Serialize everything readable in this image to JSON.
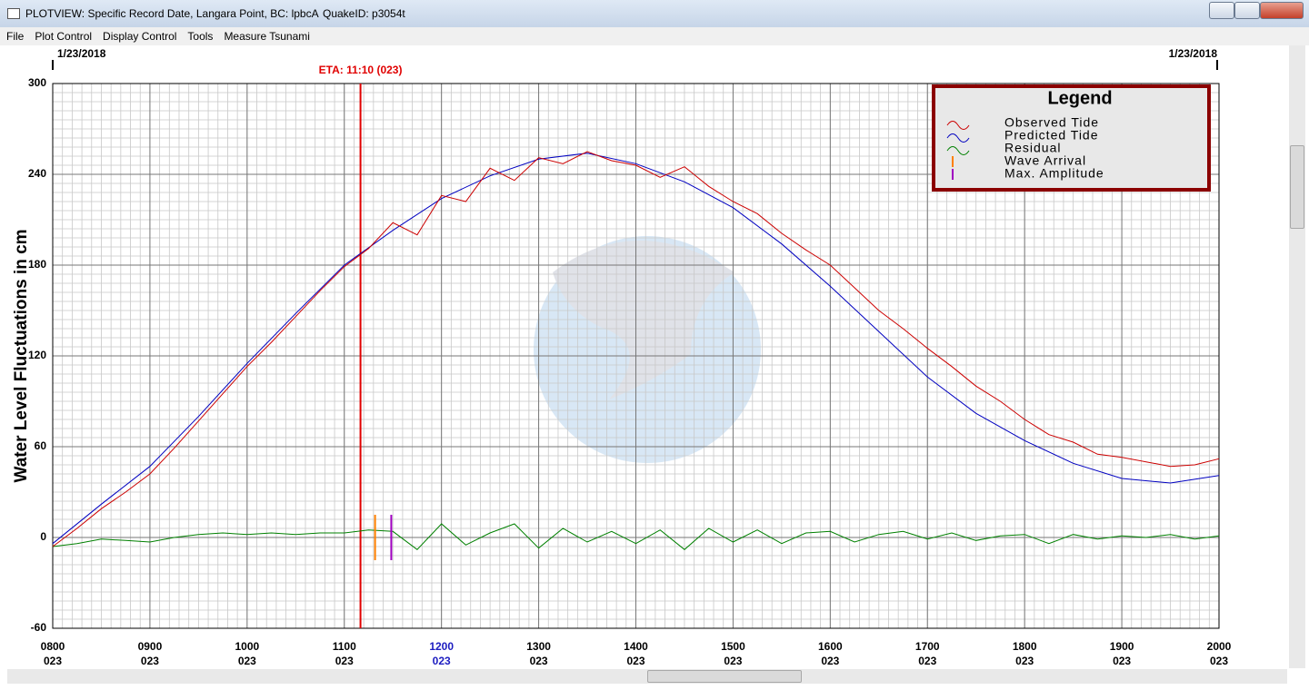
{
  "window": {
    "title": "PLOTVIEW: Specific Record Date, Langara Point, BC: lpbcA",
    "quake_id": "QuakeID: p3054t",
    "menu": [
      "File",
      "Plot Control",
      "Display Control",
      "Tools",
      "Measure Tsunami"
    ]
  },
  "chart_data": {
    "type": "line",
    "date_start": "1/23/2018",
    "date_end": "1/23/2018",
    "ylabel": "Water Level Fluctuations in cm",
    "xlim": [
      480,
      1200
    ],
    "ylim": [
      -60,
      300
    ],
    "yticks": [
      -60,
      0,
      60,
      120,
      180,
      240,
      300
    ],
    "xticks": [
      {
        "value": 480,
        "label": "0800"
      },
      {
        "value": 540,
        "label": "0900"
      },
      {
        "value": 600,
        "label": "1000"
      },
      {
        "value": 660,
        "label": "1100"
      },
      {
        "value": 720,
        "label": "1200",
        "color": "#1c1cc0"
      },
      {
        "value": 780,
        "label": "1300"
      },
      {
        "value": 840,
        "label": "1400"
      },
      {
        "value": 900,
        "label": "1500"
      },
      {
        "value": 960,
        "label": "1600"
      },
      {
        "value": 1020,
        "label": "1700"
      },
      {
        "value": 1080,
        "label": "1800"
      },
      {
        "value": 1140,
        "label": "1900"
      },
      {
        "value": 1200,
        "label": "2000"
      }
    ],
    "xtick_sublabels": [
      "023",
      "023",
      "023",
      "023",
      "023",
      "023",
      "023",
      "023",
      "023",
      "023",
      "023",
      "023",
      "023"
    ],
    "grid": true,
    "minor_xstep": 6,
    "minor_ystep": 6,
    "legend": "top-right",
    "legend_title": "Legend",
    "series": [
      {
        "name": "Observed Tide",
        "color": "#cc0000",
        "x": [
          480,
          495,
          510,
          525,
          540,
          555,
          570,
          585,
          600,
          615,
          630,
          645,
          660,
          675,
          690,
          705,
          720,
          735,
          750,
          765,
          780,
          795,
          810,
          825,
          840,
          855,
          870,
          885,
          900,
          915,
          930,
          945,
          960,
          975,
          990,
          1005,
          1020,
          1035,
          1050,
          1065,
          1080,
          1095,
          1110,
          1125,
          1140,
          1155,
          1170,
          1185,
          1200
        ],
        "values": [
          -6,
          6,
          19,
          30,
          42,
          59,
          77,
          95,
          113,
          129,
          146,
          163,
          179,
          191,
          208,
          200,
          226,
          222,
          244,
          236,
          251,
          247,
          255,
          249,
          246,
          238,
          245,
          232,
          222,
          214,
          201,
          190,
          180,
          165,
          150,
          138,
          125,
          113,
          100,
          90,
          78,
          68,
          63,
          55,
          53,
          50,
          47,
          48,
          52
        ]
      },
      {
        "name": "Predicted Tide",
        "color": "#0000c0",
        "x": [
          480,
          510,
          540,
          570,
          600,
          630,
          660,
          690,
          720,
          750,
          780,
          810,
          840,
          870,
          900,
          930,
          960,
          990,
          1020,
          1050,
          1080,
          1110,
          1140,
          1170,
          1200
        ],
        "values": [
          -4,
          22,
          47,
          80,
          115,
          148,
          180,
          203,
          224,
          239,
          250,
          254,
          247,
          235,
          218,
          194,
          166,
          136,
          106,
          82,
          64,
          49,
          39,
          36,
          41
        ]
      },
      {
        "name": "Residual",
        "color": "#008000",
        "x": [
          480,
          495,
          510,
          525,
          540,
          555,
          570,
          585,
          600,
          615,
          630,
          645,
          660,
          675,
          690,
          705,
          720,
          735,
          750,
          765,
          780,
          795,
          810,
          825,
          840,
          855,
          870,
          885,
          900,
          915,
          930,
          945,
          960,
          975,
          990,
          1005,
          1020,
          1035,
          1050,
          1065,
          1080,
          1095,
          1110,
          1125,
          1140,
          1155,
          1170,
          1185,
          1200
        ],
        "values": [
          -6,
          -4,
          -1,
          -2,
          -3,
          0,
          2,
          3,
          2,
          3,
          2,
          3,
          3,
          5,
          4,
          -8,
          9,
          -5,
          3,
          9,
          -7,
          6,
          -3,
          4,
          -4,
          5,
          -8,
          6,
          -3,
          5,
          -4,
          3,
          4,
          -3,
          2,
          4,
          -1,
          3,
          -2,
          1,
          2,
          -4,
          2,
          -1,
          1,
          0,
          2,
          -1,
          1
        ]
      }
    ],
    "markers": [
      {
        "name": "Wave Arrival",
        "color": "#ff8000",
        "x": 679,
        "values": [
          15,
          -15
        ]
      },
      {
        "name": "Max. Amplitude",
        "color": "#a000c0",
        "x": 689,
        "values": [
          15,
          -15
        ]
      }
    ],
    "eta": {
      "label": "ETA: 11:10 (023)",
      "x": 670,
      "color": "#e00000"
    }
  }
}
